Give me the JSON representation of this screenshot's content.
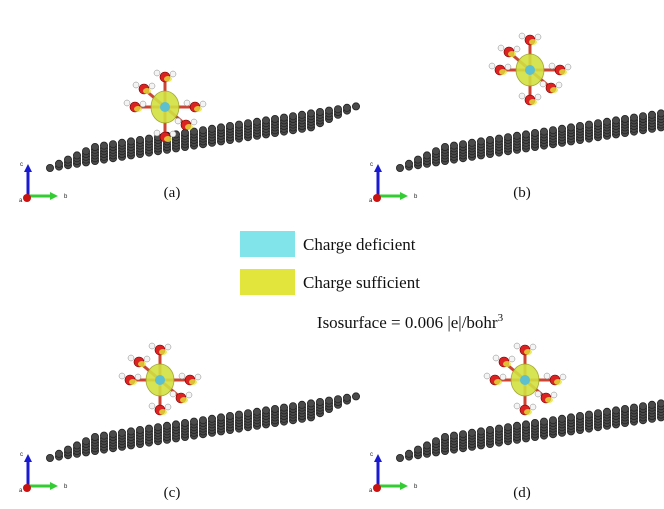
{
  "panels": [
    {
      "label": "(a)",
      "axes": [
        "c",
        "b",
        "a"
      ]
    },
    {
      "label": "(b)",
      "axes": [
        "c",
        "b",
        "a"
      ]
    },
    {
      "label": "(c)",
      "axes": [
        "c",
        "b",
        "a"
      ]
    },
    {
      "label": "(d)",
      "axes": [
        "c",
        "b",
        "a"
      ]
    }
  ],
  "legend": {
    "items": [
      {
        "label": "Charge deficient",
        "color": "#80e4ea"
      },
      {
        "label": "Charge sufficient",
        "color": "#e2e63c"
      }
    ],
    "isosurface": {
      "text": "Isosurface = 0.006 |e|/bohr",
      "superscript": "3"
    }
  }
}
